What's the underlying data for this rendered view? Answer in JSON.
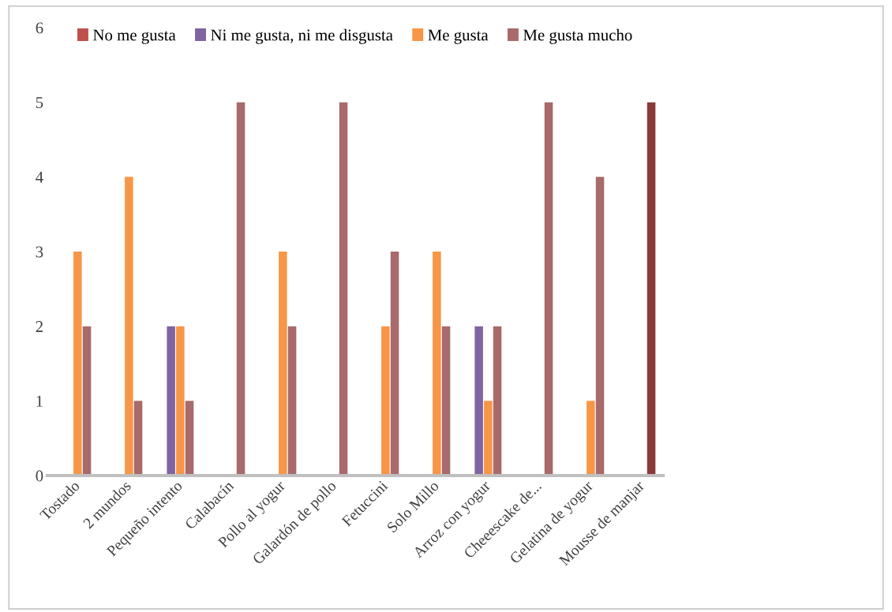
{
  "chart_data": {
    "type": "bar",
    "categories": [
      "Tostado",
      "2 mundos",
      "Pequeño intento",
      "Calabacín",
      "Pollo al yogur",
      "Galardón de pollo",
      "Fetuccini",
      "Solo Millo",
      "Arroz con yogur",
      "Cheeescake de...",
      "Gelatina de yogur",
      "Mousse de manjar"
    ],
    "series": [
      {
        "name": "No me gusta",
        "color": "#c0504d",
        "values": [
          0,
          0,
          0,
          0,
          0,
          0,
          0,
          0,
          0,
          0,
          0,
          0
        ]
      },
      {
        "name": "Ni me gusta, ni me disgusta",
        "color": "#8064a2",
        "values": [
          0,
          0,
          2,
          0,
          0,
          0,
          0,
          0,
          2,
          0,
          0,
          0
        ]
      },
      {
        "name": "Me gusta",
        "color": "#f79646",
        "values": [
          3,
          4,
          2,
          0,
          3,
          0,
          2,
          3,
          1,
          0,
          1,
          0
        ]
      },
      {
        "name": "Me gusta mucho",
        "color": "#a86a6a",
        "colors": [
          "#a86a6a",
          "#a86a6a",
          "#a86a6a",
          "#a86a6a",
          "#a86a6a",
          "#a86a6a",
          "#a86a6a",
          "#a86a6a",
          "#a86a6a",
          "#a86a6a",
          "#a86a6a",
          "#8b3a3a"
        ],
        "values": [
          2,
          1,
          1,
          5,
          2,
          5,
          3,
          2,
          2,
          5,
          4,
          5
        ]
      }
    ],
    "ylim": [
      0,
      6
    ],
    "yticks": [
      0,
      1,
      2,
      3,
      4,
      5,
      6
    ],
    "grid": false,
    "legend": "top"
  }
}
